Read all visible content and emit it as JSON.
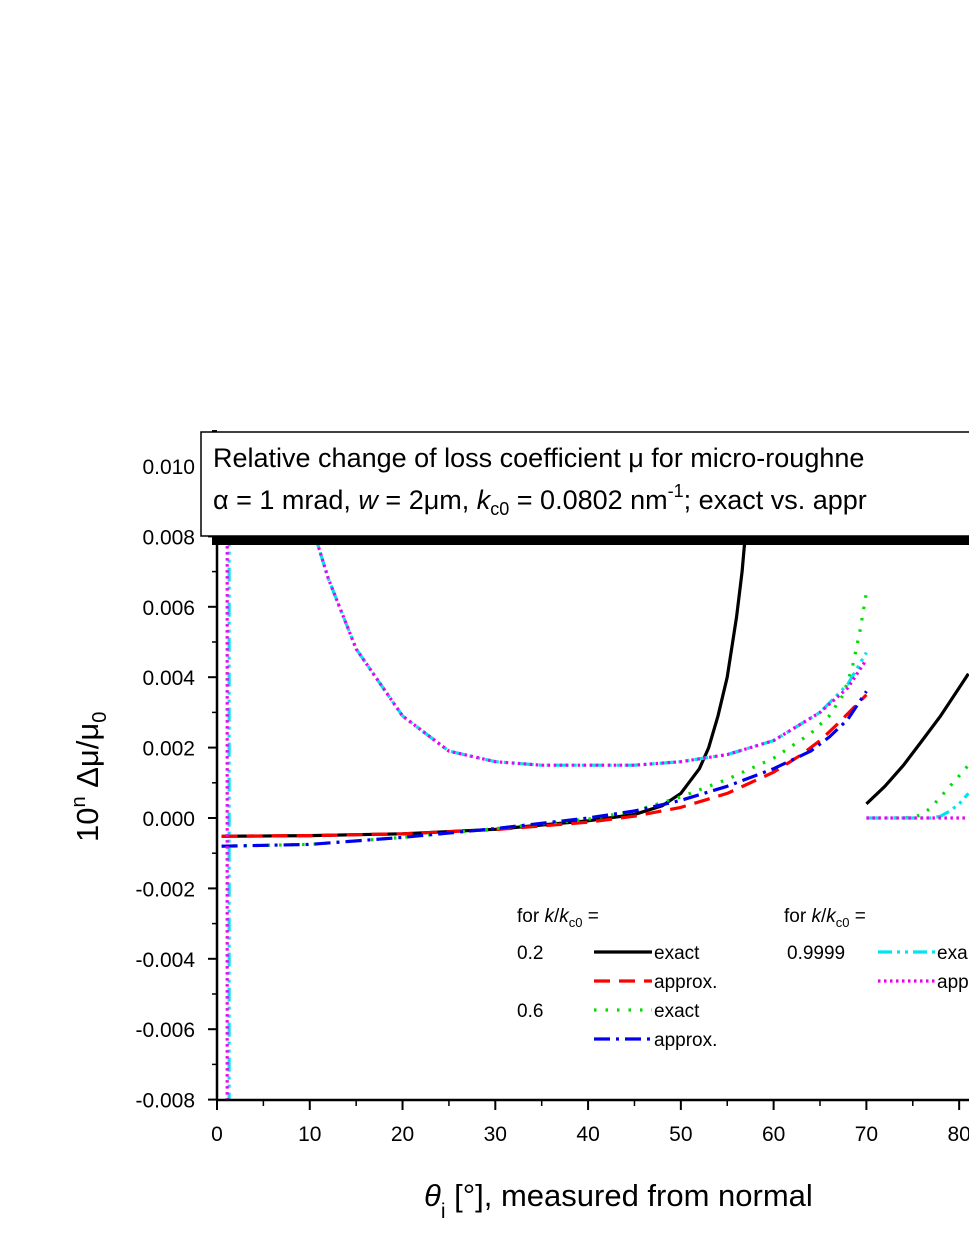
{
  "chart_data": {
    "type": "line",
    "title": "Relative change of loss coefficient μ for micro-roughne",
    "subtitle_parts": {
      "p1": "α = 1 mrad, ",
      "w": "w",
      "p2": " = 2μm, ",
      "k": "k",
      "c0": "c0",
      "p3": " = 0.0802 nm",
      "exp": "-1",
      "p4": "; exact vs. appr"
    },
    "xlabel_parts": {
      "theta": "θ",
      "sub": "i",
      "rest": " [°], measured from normal"
    },
    "ylabel_parts": {
      "pre": "10",
      "exp": "n",
      "mid": " Δμ/μ",
      "sub": "0"
    },
    "xlim": [
      0,
      81
    ],
    "ylim": [
      -0.008,
      0.011
    ],
    "x_ticks": [
      "0",
      "10",
      "20",
      "30",
      "40",
      "50",
      "60",
      "70",
      "80"
    ],
    "x_tick_values": [
      0,
      10,
      20,
      30,
      40,
      50,
      60,
      70,
      80
    ],
    "y_ticks": [
      "-0.008",
      "-0.006",
      "-0.004",
      "-0.002",
      "0.000",
      "0.002",
      "0.004",
      "0.006",
      "0.008",
      "0.010"
    ],
    "y_tick_values": [
      -0.008,
      -0.006,
      -0.004,
      -0.002,
      0.0,
      0.002,
      0.004,
      0.006,
      0.008,
      0.01
    ],
    "legend": {
      "header_a": {
        "pre": "for ",
        "k": "k",
        "slash": "/",
        "k2": "k",
        "sub": "c0",
        "post": " ="
      },
      "header_b": {
        "pre": "for ",
        "k": "k",
        "slash": "/",
        "k2": "k",
        "sub": "c0",
        "post": " ="
      },
      "group_02": "0.2",
      "group_06": "0.6",
      "group_09999": "0.9999",
      "entry_exact_02": "exact",
      "entry_approx_02": "approx.",
      "entry_exact_06": "exact",
      "entry_approx_06": "approx.",
      "entry_exact_09999": "exa",
      "entry_approx_09999": "app"
    },
    "series": [
      {
        "key": "exact_02",
        "color": "#000000",
        "dash": "solid",
        "width": 3.2,
        "segments": [
          [
            [
              0.5,
              -0.00052
            ],
            [
              10,
              -0.0005
            ],
            [
              20,
              -0.00045
            ],
            [
              30,
              -0.00032
            ],
            [
              35,
              -0.0002
            ],
            [
              40,
              -8e-05
            ],
            [
              45,
              0.0001
            ],
            [
              48,
              0.00035
            ],
            [
              50,
              0.0007
            ],
            [
              52,
              0.0014
            ],
            [
              53,
              0.002
            ],
            [
              54,
              0.0029
            ],
            [
              55,
              0.004
            ],
            [
              56,
              0.0057
            ],
            [
              56.6,
              0.007
            ],
            [
              57.1,
              0.0085
            ]
          ],
          [
            [
              70,
              0.0004
            ],
            [
              72,
              0.0009
            ],
            [
              74,
              0.0015
            ],
            [
              76,
              0.0022
            ],
            [
              78,
              0.0029
            ],
            [
              80,
              0.0037
            ],
            [
              81,
              0.0041
            ]
          ]
        ]
      },
      {
        "key": "approx_02",
        "color": "#ff0000",
        "dash": "16 9",
        "width": 3.2,
        "segments": [
          [
            [
              0.5,
              -0.00052
            ],
            [
              10,
              -0.0005
            ],
            [
              20,
              -0.00045
            ],
            [
              30,
              -0.00033
            ],
            [
              40,
              -0.00012
            ],
            [
              45,
              5e-05
            ],
            [
              50,
              0.0003
            ],
            [
              55,
              0.0007
            ],
            [
              60,
              0.0013
            ],
            [
              63,
              0.0018
            ],
            [
              65,
              0.0022
            ],
            [
              67,
              0.0027
            ],
            [
              68.5,
              0.0031
            ],
            [
              70,
              0.0035
            ]
          ]
        ]
      },
      {
        "key": "exact_06",
        "color": "#00dd00",
        "dash": "2.5 9",
        "width": 3.2,
        "segments": [
          [
            [
              0.5,
              -0.0008
            ],
            [
              10,
              -0.00075
            ],
            [
              20,
              -0.00055
            ],
            [
              30,
              -0.0003
            ],
            [
              40,
              -3e-05
            ],
            [
              45,
              0.0002
            ],
            [
              50,
              0.0006
            ],
            [
              55,
              0.0011
            ],
            [
              60,
              0.0017
            ],
            [
              64,
              0.0024
            ],
            [
              66,
              0.0029
            ],
            [
              67.5,
              0.0035
            ],
            [
              68.5,
              0.0043
            ],
            [
              69.3,
              0.0053
            ],
            [
              70,
              0.0064
            ]
          ],
          [
            [
              73,
              0.0
            ],
            [
              75,
              2e-05
            ],
            [
              76,
              0.0001
            ],
            [
              77,
              0.0003
            ],
            [
              78,
              0.0006
            ],
            [
              79,
              0.0009
            ],
            [
              80,
              0.0012
            ],
            [
              81,
              0.0015
            ]
          ]
        ]
      },
      {
        "key": "approx_06",
        "color": "#0000ee",
        "dash": "16 6 3 6",
        "width": 3.2,
        "segments": [
          [
            [
              0.5,
              -0.0008
            ],
            [
              10,
              -0.00075
            ],
            [
              20,
              -0.00055
            ],
            [
              30,
              -0.0003
            ],
            [
              40,
              0.0
            ],
            [
              45,
              0.0002
            ],
            [
              50,
              0.0005
            ],
            [
              55,
              0.0009
            ],
            [
              60,
              0.0014
            ],
            [
              64,
              0.0019
            ],
            [
              66,
              0.0023
            ],
            [
              68,
              0.0028
            ],
            [
              70,
              0.0036
            ]
          ]
        ]
      },
      {
        "key": "exact_09999",
        "color": "#00e5ee",
        "dash": "14 5 3 5 3 5",
        "width": 3.2,
        "segments": [
          [
            [
              1.3,
              -0.0082
            ],
            [
              1.3,
              0.011
            ]
          ],
          [
            [
              10,
              0.0085
            ],
            [
              12,
              0.0068
            ],
            [
              15,
              0.0048
            ],
            [
              20,
              0.0029
            ],
            [
              25,
              0.0019
            ],
            [
              30,
              0.0016
            ],
            [
              35,
              0.0015
            ],
            [
              40,
              0.0015
            ],
            [
              45,
              0.0015
            ],
            [
              50,
              0.0016
            ],
            [
              55,
              0.0018
            ],
            [
              60,
              0.0022
            ],
            [
              65,
              0.003
            ],
            [
              68,
              0.0038
            ],
            [
              70,
              0.0047
            ]
          ],
          [
            [
              70,
              0.0
            ],
            [
              77,
              0.0
            ],
            [
              78,
              5e-05
            ],
            [
              79,
              0.0002
            ],
            [
              80,
              0.0004
            ],
            [
              81,
              0.0007
            ]
          ]
        ]
      },
      {
        "key": "approx_09999",
        "color": "#ee00ee",
        "dash": "2.5 3.5",
        "width": 3.2,
        "segments": [
          [
            [
              1.1,
              -0.0082
            ],
            [
              1.1,
              0.011
            ]
          ],
          [
            [
              10,
              0.0085
            ],
            [
              12,
              0.0068
            ],
            [
              15,
              0.0048
            ],
            [
              20,
              0.0029
            ],
            [
              25,
              0.0019
            ],
            [
              30,
              0.0016
            ],
            [
              35,
              0.0015
            ],
            [
              40,
              0.0015
            ],
            [
              45,
              0.0015
            ],
            [
              50,
              0.0016
            ],
            [
              55,
              0.0018
            ],
            [
              60,
              0.0022
            ],
            [
              65,
              0.003
            ],
            [
              68,
              0.0037
            ],
            [
              70,
              0.0045
            ]
          ],
          [
            [
              70,
              0.0
            ],
            [
              81,
              0.0
            ]
          ]
        ]
      }
    ]
  }
}
